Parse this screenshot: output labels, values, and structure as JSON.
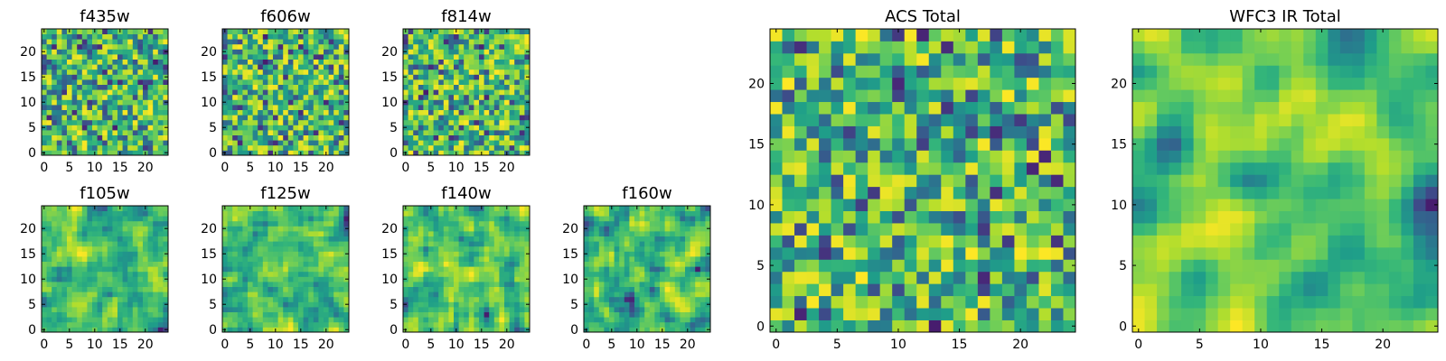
{
  "figure": {
    "description": "Grid of image cutouts per HST filter with ACS and WFC3 IR totals",
    "colormap": "viridis"
  },
  "chart_data": [
    {
      "type": "heatmap",
      "title": "f435w",
      "cmap": "viridis",
      "xlim": [
        0,
        24
      ],
      "ylim": [
        0,
        24
      ],
      "xticks": [
        0,
        5,
        10,
        15,
        20
      ],
      "yticks": [
        0,
        5,
        10,
        15,
        20
      ],
      "grid_size": 25,
      "seed": 11,
      "smooth": 0
    },
    {
      "type": "heatmap",
      "title": "f606w",
      "cmap": "viridis",
      "xlim": [
        0,
        24
      ],
      "ylim": [
        0,
        24
      ],
      "xticks": [
        0,
        5,
        10,
        15,
        20
      ],
      "yticks": [
        0,
        5,
        10,
        15,
        20
      ],
      "grid_size": 25,
      "seed": 23,
      "smooth": 0
    },
    {
      "type": "heatmap",
      "title": "f814w",
      "cmap": "viridis",
      "xlim": [
        0,
        24
      ],
      "ylim": [
        0,
        24
      ],
      "xticks": [
        0,
        5,
        10,
        15,
        20
      ],
      "yticks": [
        0,
        5,
        10,
        15,
        20
      ],
      "grid_size": 25,
      "seed": 37,
      "smooth": 0
    },
    {
      "type": "heatmap",
      "title": "f105w",
      "cmap": "viridis",
      "xlim": [
        0,
        24
      ],
      "ylim": [
        0,
        24
      ],
      "xticks": [
        0,
        5,
        10,
        15,
        20
      ],
      "yticks": [
        0,
        5,
        10,
        15,
        20
      ],
      "grid_size": 25,
      "seed": 41,
      "smooth": 1
    },
    {
      "type": "heatmap",
      "title": "f125w",
      "cmap": "viridis",
      "xlim": [
        0,
        24
      ],
      "ylim": [
        0,
        24
      ],
      "xticks": [
        0,
        5,
        10,
        15,
        20
      ],
      "yticks": [
        0,
        5,
        10,
        15,
        20
      ],
      "grid_size": 25,
      "seed": 53,
      "smooth": 1
    },
    {
      "type": "heatmap",
      "title": "f140w",
      "cmap": "viridis",
      "xlim": [
        0,
        24
      ],
      "ylim": [
        0,
        24
      ],
      "xticks": [
        0,
        5,
        10,
        15,
        20
      ],
      "yticks": [
        0,
        5,
        10,
        15,
        20
      ],
      "grid_size": 25,
      "seed": 67,
      "smooth": 1
    },
    {
      "type": "heatmap",
      "title": "f160w",
      "cmap": "viridis",
      "xlim": [
        0,
        24
      ],
      "ylim": [
        0,
        24
      ],
      "xticks": [
        0,
        5,
        10,
        15,
        20
      ],
      "yticks": [
        0,
        5,
        10,
        15,
        20
      ],
      "grid_size": 25,
      "seed": 79,
      "smooth": 1
    },
    {
      "type": "heatmap",
      "title": "ACS Total",
      "cmap": "viridis",
      "xlim": [
        0,
        24
      ],
      "ylim": [
        0,
        24
      ],
      "xticks": [
        0,
        5,
        10,
        15,
        20
      ],
      "yticks": [
        0,
        5,
        10,
        15,
        20
      ],
      "grid_size": 25,
      "seed": 97,
      "smooth": 0
    },
    {
      "type": "heatmap",
      "title": "WFC3 IR Total",
      "cmap": "viridis",
      "xlim": [
        0,
        24
      ],
      "ylim": [
        0,
        24
      ],
      "xticks": [
        0,
        5,
        10,
        15,
        20
      ],
      "yticks": [
        0,
        5,
        10,
        15,
        20
      ],
      "grid_size": 25,
      "seed": 113,
      "smooth": 2
    }
  ]
}
